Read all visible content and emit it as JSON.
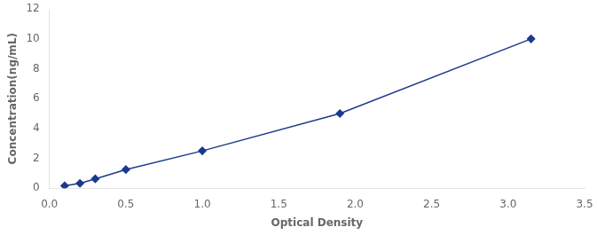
{
  "chart_data": {
    "type": "line",
    "x": [
      0.1,
      0.2,
      0.3,
      0.5,
      1.0,
      1.9,
      3.15
    ],
    "values": [
      0.16,
      0.32,
      0.625,
      1.25,
      2.5,
      5.0,
      10.0
    ],
    "color": "#1A3A8C",
    "marker": "diamond",
    "xlabel": "Optical Density",
    "ylabel": "Concentration(ng/mL)",
    "xlim": [
      0.0,
      3.5
    ],
    "ylim": [
      0,
      12
    ],
    "xticks": [
      {
        "value": 0,
        "label": "0.0"
      },
      0.5,
      {
        "value": 1,
        "label": "1.0"
      },
      1.5,
      {
        "value": 2,
        "label": "2.0"
      },
      2.5,
      {
        "value": 3,
        "label": "3.0"
      },
      3.5
    ],
    "yticks": [
      0,
      2,
      4,
      6,
      8,
      10,
      12
    ],
    "grid": false
  }
}
